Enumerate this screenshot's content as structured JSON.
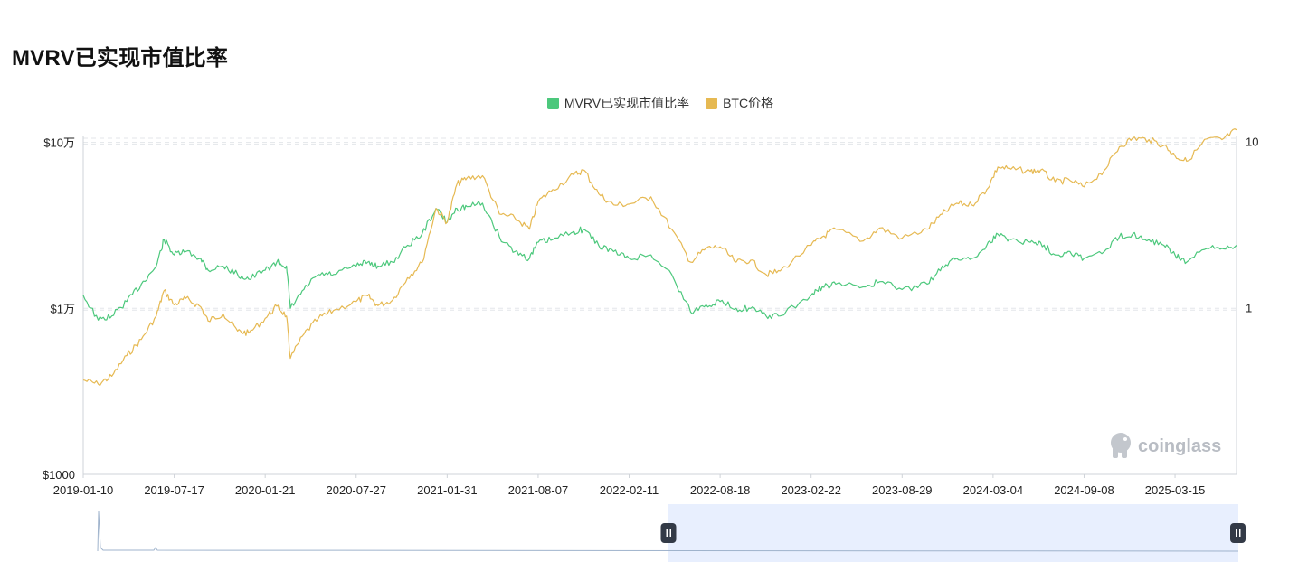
{
  "chart_data": {
    "type": "line",
    "title": "MVRV已实现市值比率",
    "legend": {
      "placement": "top-center",
      "items": [
        {
          "name": "MVRV已实现市值比率",
          "color": "#4cc87c"
        },
        {
          "name": "BTC价格",
          "color": "#e6b952"
        }
      ]
    },
    "x_tick_labels": [
      "2019-01-10",
      "2019-07-17",
      "2020-01-21",
      "2020-07-27",
      "2021-01-31",
      "2021-08-07",
      "2022-02-11",
      "2022-08-18",
      "2023-02-22",
      "2023-08-29",
      "2024-03-04",
      "2024-09-08",
      "2025-03-15"
    ],
    "x_range": [
      "2019-01-10",
      "2025-07-20"
    ],
    "y_left": {
      "scale": "log",
      "range": [
        1000,
        110000
      ],
      "tick_values": [
        1000,
        10000,
        100000
      ],
      "tick_labels": [
        "$1000",
        "$1万",
        "$10万"
      ]
    },
    "y_right": {
      "scale": "log",
      "range": [
        0.1,
        11
      ],
      "tick_values": [
        1,
        10
      ],
      "tick_labels": [
        "1",
        "10"
      ]
    },
    "grid": "horizontal-dashed",
    "series": [
      {
        "name": "BTC价格",
        "axis": "left",
        "color": "#e6b952",
        "x": [
          "2019-01-10",
          "2019-02-10",
          "2019-03-10",
          "2019-04-10",
          "2019-05-10",
          "2019-06-10",
          "2019-06-26",
          "2019-07-17",
          "2019-08-10",
          "2019-09-10",
          "2019-09-25",
          "2019-10-26",
          "2019-11-25",
          "2019-12-18",
          "2020-01-21",
          "2020-02-14",
          "2020-03-05",
          "2020-03-13",
          "2020-04-10",
          "2020-05-10",
          "2020-06-10",
          "2020-07-27",
          "2020-08-20",
          "2020-09-10",
          "2020-10-10",
          "2020-11-10",
          "2020-12-10",
          "2021-01-08",
          "2021-01-31",
          "2021-02-20",
          "2021-03-13",
          "2021-04-14",
          "2021-05-19",
          "2021-06-20",
          "2021-07-20",
          "2021-08-07",
          "2021-09-06",
          "2021-10-20",
          "2021-11-10",
          "2021-12-10",
          "2022-01-10",
          "2022-02-11",
          "2022-03-28",
          "2022-05-10",
          "2022-06-18",
          "2022-07-20",
          "2022-08-18",
          "2022-09-20",
          "2022-10-20",
          "2022-11-21",
          "2022-12-20",
          "2023-02-22",
          "2023-03-17",
          "2023-04-14",
          "2023-06-10",
          "2023-07-14",
          "2023-08-29",
          "2023-10-20",
          "2023-11-20",
          "2023-12-20",
          "2024-01-20",
          "2024-02-20",
          "2024-03-14",
          "2024-04-10",
          "2024-05-20",
          "2024-06-10",
          "2024-07-10",
          "2024-08-10",
          "2024-09-08",
          "2024-10-20",
          "2024-11-20",
          "2024-12-17",
          "2025-01-20",
          "2025-02-20",
          "2025-03-15",
          "2025-04-08",
          "2025-05-20",
          "2025-06-20",
          "2025-07-20"
        ],
        "values": [
          3700,
          3500,
          3900,
          5200,
          6500,
          9000,
          12800,
          10500,
          11500,
          10200,
          8400,
          9300,
          7300,
          7100,
          8700,
          10300,
          9000,
          5000,
          7000,
          8700,
          9700,
          11000,
          11900,
          10400,
          11200,
          15300,
          18800,
          40000,
          33000,
          56000,
          61000,
          63000,
          37000,
          35000,
          30000,
          44000,
          52000,
          64000,
          68000,
          49000,
          42000,
          42500,
          47000,
          30000,
          19000,
          23000,
          23500,
          19000,
          19500,
          16000,
          16800,
          24000,
          27000,
          30000,
          25500,
          30500,
          26500,
          30000,
          37000,
          43000,
          42000,
          52000,
          71000,
          69000,
          67000,
          68000,
          58000,
          59000,
          54000,
          68000,
          94000,
          106000,
          104000,
          96000,
          83000,
          77000,
          105000,
          104000,
          119000
        ]
      },
      {
        "name": "MVRV已实现市值比率",
        "axis": "right",
        "color": "#4cc87c",
        "x": [
          "2019-01-10",
          "2019-02-10",
          "2019-03-10",
          "2019-04-10",
          "2019-05-10",
          "2019-06-10",
          "2019-06-26",
          "2019-07-17",
          "2019-08-10",
          "2019-09-10",
          "2019-09-25",
          "2019-10-26",
          "2019-11-25",
          "2019-12-18",
          "2020-01-21",
          "2020-02-14",
          "2020-03-05",
          "2020-03-13",
          "2020-04-10",
          "2020-05-10",
          "2020-06-10",
          "2020-07-27",
          "2020-08-20",
          "2020-09-10",
          "2020-10-10",
          "2020-11-10",
          "2020-12-10",
          "2021-01-08",
          "2021-01-31",
          "2021-02-20",
          "2021-03-13",
          "2021-04-14",
          "2021-05-19",
          "2021-06-20",
          "2021-07-20",
          "2021-08-07",
          "2021-09-06",
          "2021-10-20",
          "2021-11-10",
          "2021-12-10",
          "2022-01-10",
          "2022-02-11",
          "2022-03-28",
          "2022-05-10",
          "2022-06-18",
          "2022-07-20",
          "2022-08-18",
          "2022-09-20",
          "2022-10-20",
          "2022-11-21",
          "2022-12-20",
          "2023-02-22",
          "2023-03-17",
          "2023-04-14",
          "2023-06-10",
          "2023-07-14",
          "2023-08-29",
          "2023-10-20",
          "2023-11-20",
          "2023-12-20",
          "2024-01-20",
          "2024-02-20",
          "2024-03-14",
          "2024-04-10",
          "2024-05-20",
          "2024-06-10",
          "2024-07-10",
          "2024-08-10",
          "2024-09-08",
          "2024-10-20",
          "2024-11-20",
          "2024-12-17",
          "2025-01-20",
          "2025-02-20",
          "2025-03-15",
          "2025-04-08",
          "2025-05-20",
          "2025-06-20",
          "2025-07-20"
        ],
        "values": [
          1.2,
          0.85,
          0.9,
          1.1,
          1.4,
          1.8,
          2.6,
          2.1,
          2.2,
          2.0,
          1.7,
          1.8,
          1.6,
          1.5,
          1.7,
          1.9,
          1.8,
          1.0,
          1.3,
          1.6,
          1.6,
          1.8,
          1.9,
          1.8,
          1.9,
          2.4,
          2.8,
          4.0,
          3.3,
          4.0,
          4.1,
          4.3,
          2.7,
          2.2,
          2.0,
          2.5,
          2.6,
          2.9,
          3.0,
          2.4,
          2.2,
          2.0,
          2.1,
          1.6,
          0.95,
          1.05,
          1.1,
          1.0,
          1.0,
          0.9,
          0.9,
          1.2,
          1.35,
          1.4,
          1.35,
          1.45,
          1.3,
          1.4,
          1.8,
          2.0,
          2.0,
          2.4,
          2.8,
          2.6,
          2.5,
          2.5,
          2.1,
          2.2,
          2.0,
          2.2,
          2.7,
          2.8,
          2.6,
          2.4,
          2.1,
          1.9,
          2.3,
          2.3,
          2.4
        ]
      }
    ]
  },
  "watermark": {
    "text": "coinglass",
    "icon": "coinglass-logo-icon"
  },
  "slider": {
    "selection_start_fraction": 0.5,
    "selection_end_fraction": 1.0,
    "handle_color": "#333a47",
    "selection_color": "#e8effe"
  }
}
